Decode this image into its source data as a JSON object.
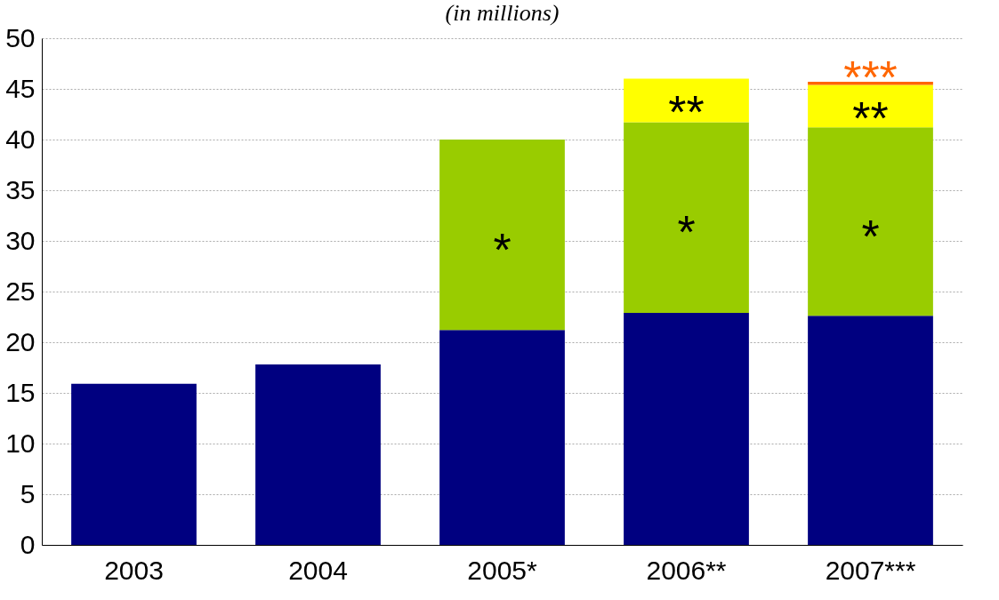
{
  "chart_data": {
    "type": "bar",
    "title": "(in millions)",
    "categories": [
      "2003",
      "2004",
      "2005*",
      "2006**",
      "2007***"
    ],
    "stacked": true,
    "series": [
      {
        "color": "#000080",
        "values": [
          15.9,
          17.8,
          21.2,
          22.9,
          22.6
        ]
      },
      {
        "color": "#99cc00",
        "values": [
          null,
          null,
          18.8,
          18.8,
          18.6
        ],
        "value_labels": [
          null,
          null,
          "*",
          "*",
          "*"
        ]
      },
      {
        "color": "#ffff00",
        "values": [
          null,
          null,
          null,
          4.3,
          4.2
        ],
        "value_labels": [
          null,
          null,
          null,
          "**",
          "**"
        ]
      },
      {
        "color": "#ff6600",
        "values": [
          null,
          null,
          null,
          null,
          0.3
        ],
        "value_labels": [
          null,
          null,
          null,
          null,
          "***"
        ]
      }
    ],
    "ylim": [
      0,
      50
    ],
    "yticks": [
      0,
      5,
      10,
      15,
      20,
      25,
      30,
      35,
      40,
      45,
      50
    ],
    "grid": "y"
  }
}
